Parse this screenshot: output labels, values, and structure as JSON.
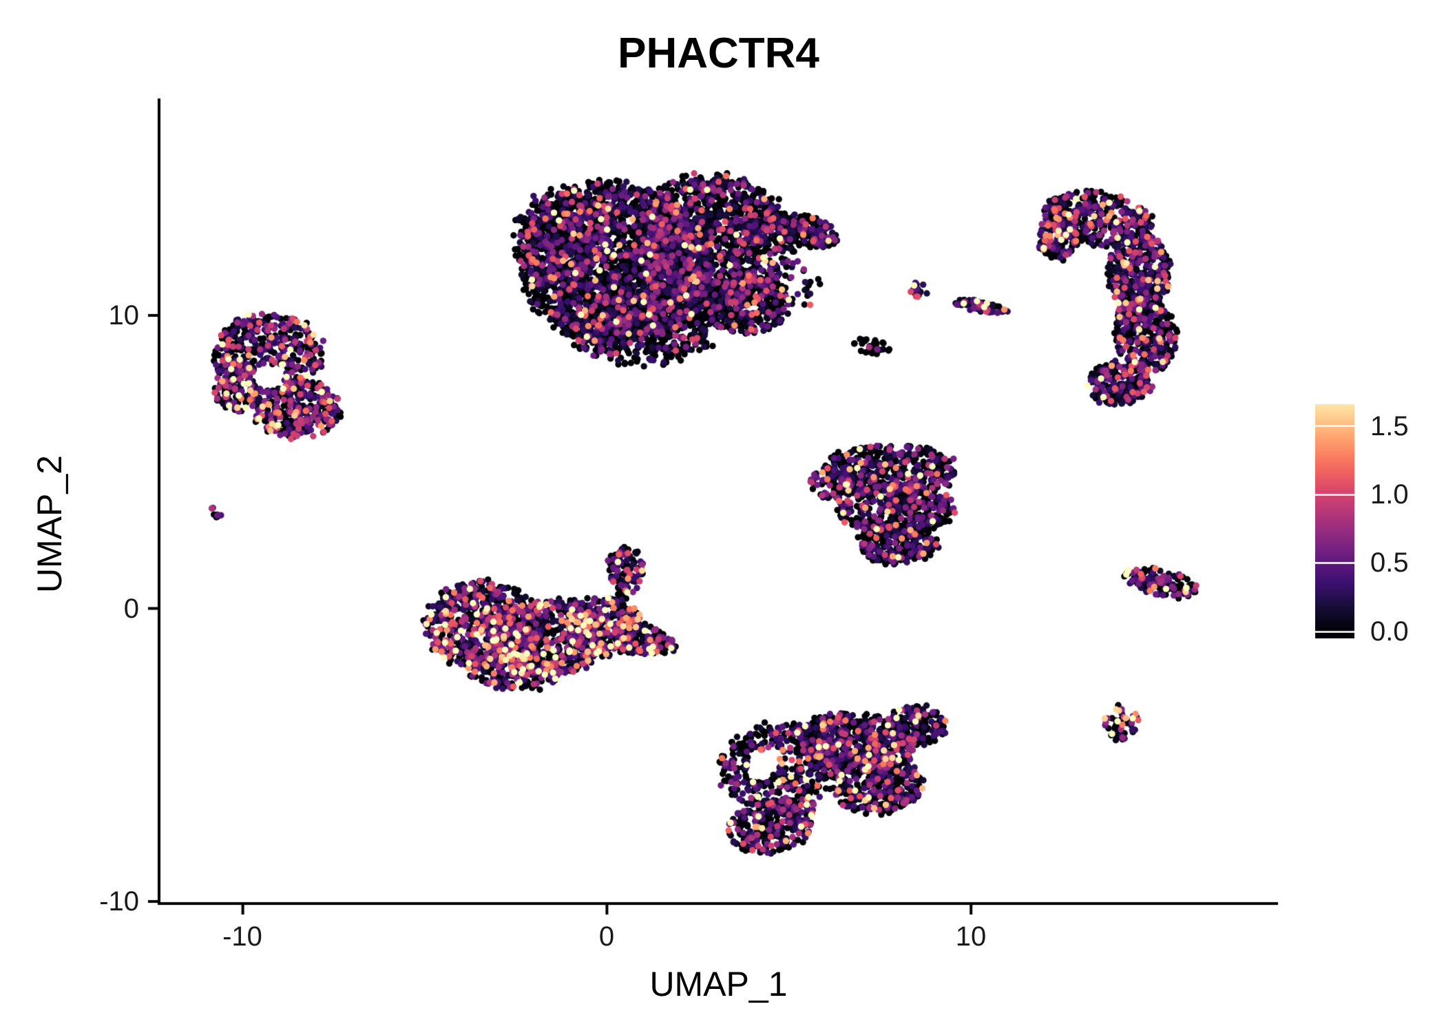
{
  "chart_data": {
    "type": "scatter",
    "title": "PHACTR4",
    "xlabel": "UMAP_1",
    "ylabel": "UMAP_2",
    "xlim": [
      -12.3,
      18.43
    ],
    "ylim": [
      -10.07,
      17.4
    ],
    "x_ticks": [
      -10,
      0,
      10
    ],
    "y_ticks": [
      10,
      0,
      -10
    ],
    "x_tick_labels": [
      "-10",
      "0",
      "10"
    ],
    "y_tick_labels": [
      "10",
      "0",
      "-10"
    ],
    "grid": false,
    "legend_position": "right",
    "colors": {
      "background": "#ffffff",
      "axis": "#000000",
      "tick_text": "#1a1a1a"
    },
    "colorbar": {
      "tick_labels": [
        "1.5",
        "1.0",
        "0.5",
        "0.0"
      ],
      "tick_values": [
        1.5,
        1.0,
        0.5,
        0.0
      ],
      "value_min": -0.05,
      "value_max": 1.66,
      "data_max": 1.75,
      "magma_stops": [
        [
          0.0,
          "#000004"
        ],
        [
          0.1,
          "#140e36"
        ],
        [
          0.2,
          "#3b0f70"
        ],
        [
          0.3,
          "#641a80"
        ],
        [
          0.4,
          "#8c2981"
        ],
        [
          0.5,
          "#b73779"
        ],
        [
          0.6,
          "#de4968"
        ],
        [
          0.7,
          "#f7705c"
        ],
        [
          0.8,
          "#fe9f6d"
        ],
        [
          0.9,
          "#fecf92"
        ],
        [
          1.0,
          "#fcfdbf"
        ]
      ]
    },
    "point_radius_px": 4.7,
    "clusters": [
      {
        "name": "top-center-main",
        "p0": 0.52,
        "scale": 0.38,
        "blobs": [
          [
            0.2,
            11.8,
            2.6,
            2.7,
            0,
            2100
          ],
          [
            2.9,
            12.5,
            2.1,
            2.3,
            0,
            1500
          ],
          [
            1.0,
            9.6,
            2.0,
            1.3,
            0,
            550
          ],
          [
            3.8,
            10.4,
            1.3,
            1.0,
            0,
            350
          ],
          [
            5.4,
            12.9,
            1.05,
            0.5,
            -18,
            170
          ],
          [
            -1.2,
            12.8,
            1.3,
            1.6,
            0,
            330
          ],
          [
            5.2,
            11.0,
            0.8,
            0.8,
            0,
            30
          ]
        ]
      },
      {
        "name": "top-right-crescent",
        "p0": 0.38,
        "scale": 0.42,
        "blobs": [
          [
            13.5,
            13.3,
            1.5,
            0.9,
            -12,
            380
          ],
          [
            14.6,
            11.5,
            0.85,
            1.3,
            0,
            360
          ],
          [
            14.8,
            9.4,
            0.85,
            1.3,
            8,
            360
          ],
          [
            14.1,
            7.7,
            0.9,
            0.75,
            25,
            240
          ],
          [
            12.4,
            12.7,
            0.55,
            0.8,
            0,
            130
          ]
        ]
      },
      {
        "name": "left-cluster",
        "p0": 0.32,
        "scale": 0.52,
        "holes": [
          [
            -9.3,
            7.9,
            0.45
          ]
        ],
        "blobs": [
          [
            -9.3,
            8.7,
            1.5,
            1.4,
            0,
            430
          ],
          [
            -8.5,
            6.8,
            1.2,
            1.0,
            0,
            330
          ],
          [
            -10.2,
            7.6,
            0.6,
            0.9,
            0,
            130
          ]
        ]
      },
      {
        "name": "left-tiny-dot",
        "p0": 0.2,
        "scale": 0.6,
        "blobs": [
          [
            -10.75,
            3.25,
            0.16,
            0.2,
            0,
            10
          ]
        ]
      },
      {
        "name": "small-upper-clump",
        "p0": 0.35,
        "scale": 0.55,
        "blobs": [
          [
            8.55,
            10.9,
            0.25,
            0.3,
            0,
            16
          ]
        ]
      },
      {
        "name": "upper-streak",
        "p0": 0.3,
        "scale": 0.55,
        "blobs": [
          [
            10.3,
            10.3,
            0.75,
            0.18,
            -12,
            60
          ]
        ]
      },
      {
        "name": "small-dark-clump",
        "p0": 0.75,
        "scale": 0.3,
        "blobs": [
          [
            7.2,
            8.95,
            0.55,
            0.25,
            -10,
            30
          ]
        ]
      },
      {
        "name": "mid-right-triangle",
        "p0": 0.45,
        "scale": 0.42,
        "blobs": [
          [
            7.8,
            4.7,
            1.8,
            0.9,
            0,
            430
          ],
          [
            7.9,
            3.4,
            1.6,
            0.9,
            0,
            400
          ],
          [
            8.0,
            2.2,
            1.1,
            0.7,
            0,
            240
          ],
          [
            6.2,
            4.3,
            0.6,
            0.6,
            0,
            80
          ]
        ]
      },
      {
        "name": "center-left-cluster",
        "p0": 0.34,
        "scale": 0.58,
        "blobs": [
          [
            -3.4,
            -0.6,
            1.6,
            1.5,
            0,
            650
          ],
          [
            -1.6,
            -1.0,
            1.6,
            1.3,
            0,
            550
          ],
          [
            -0.1,
            -0.6,
            1.1,
            1.0,
            0,
            300
          ],
          [
            1.0,
            -1.1,
            0.9,
            0.5,
            -15,
            140
          ],
          [
            0.5,
            1.3,
            0.5,
            0.9,
            0,
            110
          ],
          [
            -2.5,
            -2.1,
            1.3,
            0.7,
            0,
            200
          ]
        ]
      },
      {
        "name": "bottom-center-cluster",
        "p0": 0.44,
        "scale": 0.46,
        "holes": [
          [
            4.3,
            -5.3,
            0.45
          ]
        ],
        "blobs": [
          [
            4.7,
            -5.4,
            1.6,
            1.5,
            0,
            430
          ],
          [
            6.8,
            -4.6,
            1.6,
            1.0,
            -8,
            520
          ],
          [
            7.4,
            -6.0,
            1.3,
            1.0,
            0,
            380
          ],
          [
            4.5,
            -7.4,
            1.2,
            0.9,
            20,
            280
          ],
          [
            8.5,
            -4.0,
            0.8,
            0.7,
            0,
            170
          ]
        ]
      },
      {
        "name": "right-streak",
        "p0": 0.3,
        "scale": 0.5,
        "blobs": [
          [
            15.2,
            0.9,
            1.05,
            0.45,
            -18,
            130
          ]
        ]
      },
      {
        "name": "bottom-right-small",
        "p0": 0.25,
        "scale": 0.6,
        "blobs": [
          [
            14.1,
            -3.9,
            0.5,
            0.6,
            0,
            55
          ]
        ]
      }
    ]
  }
}
